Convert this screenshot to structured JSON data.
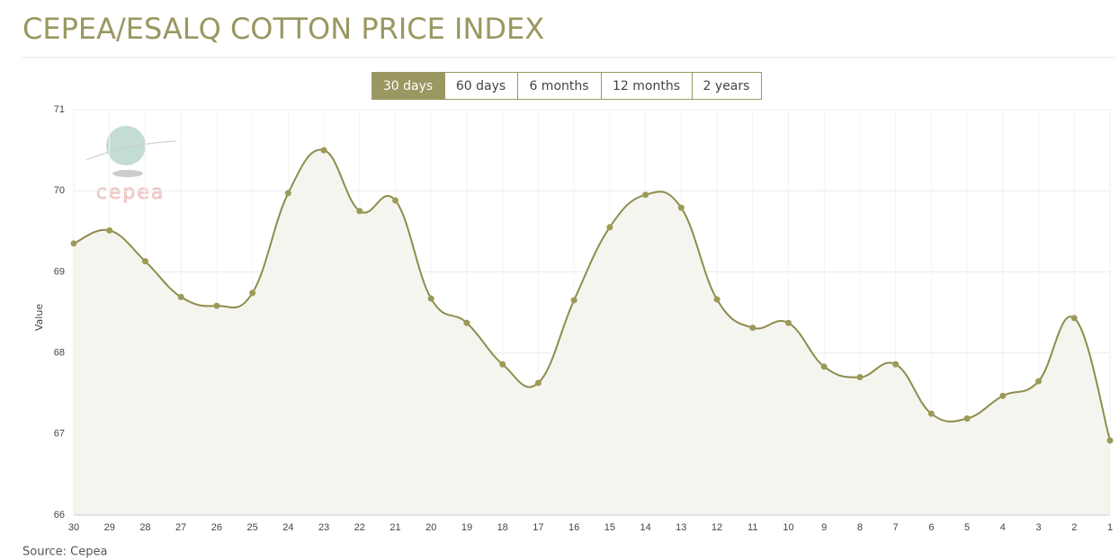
{
  "chart_data": {
    "type": "line",
    "title": "CEPEA/ESALQ COTTON PRICE INDEX",
    "y_label": "Value",
    "categories": [
      "30",
      "29",
      "28",
      "27",
      "26",
      "25",
      "24",
      "23",
      "22",
      "21",
      "20",
      "19",
      "18",
      "17",
      "16",
      "15",
      "14",
      "13",
      "12",
      "11",
      "10",
      "9",
      "8",
      "7",
      "6",
      "5",
      "4",
      "3",
      "2",
      "1"
    ],
    "values": [
      69.35,
      69.51,
      69.13,
      68.69,
      68.58,
      68.74,
      69.97,
      70.5,
      69.75,
      69.88,
      68.67,
      68.37,
      67.86,
      67.63,
      68.65,
      69.55,
      69.95,
      69.79,
      68.66,
      68.31,
      68.37,
      67.83,
      67.7,
      67.86,
      67.25,
      67.19,
      67.47,
      67.65,
      68.43,
      66.92
    ],
    "color": "#8f8c4c",
    "ylim": [
      66,
      71
    ],
    "yticks": [
      66,
      67,
      68,
      69,
      70,
      71
    ],
    "grid": true
  },
  "range_buttons": [
    "30 days",
    "60 days",
    "6 months",
    "12 months",
    "2 years"
  ],
  "selected_button": 0,
  "logo": "cepea",
  "source": "Source: Cepea"
}
